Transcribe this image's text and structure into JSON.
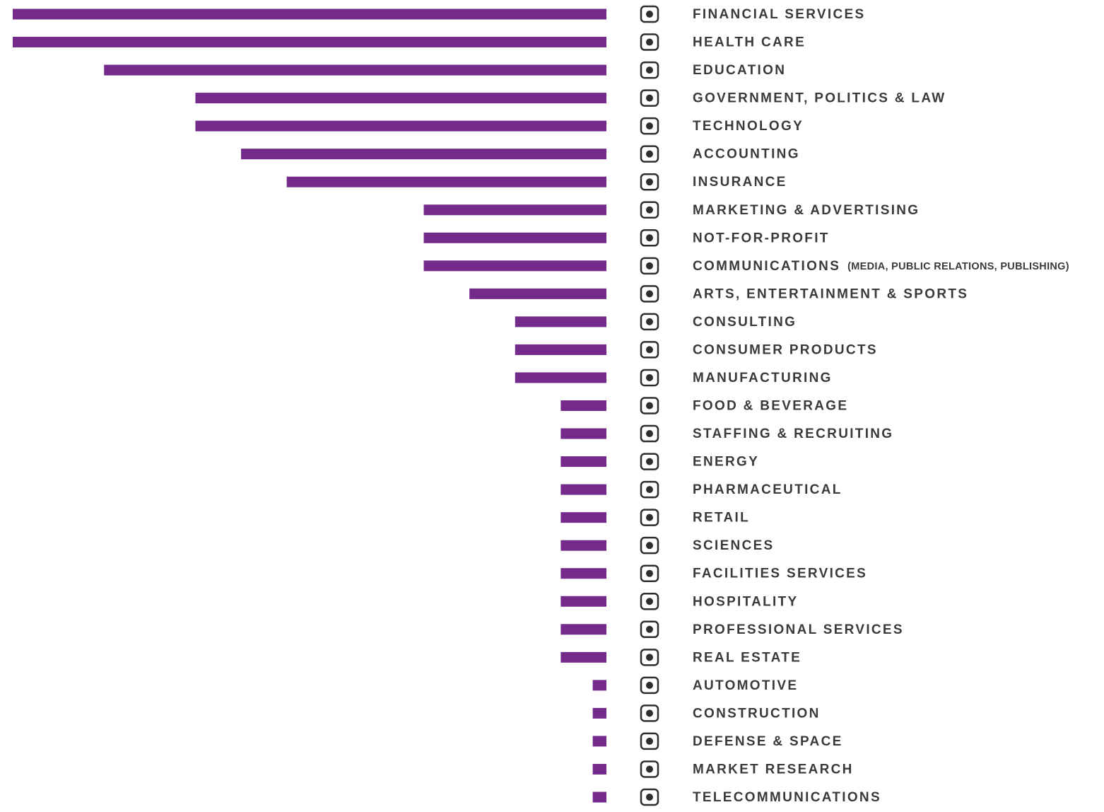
{
  "chart_data": {
    "type": "bar",
    "orientation": "horizontal",
    "color": "#732a8a",
    "categories": [
      "FINANCIAL SERVICES",
      "HEALTH CARE",
      "EDUCATION",
      "GOVERNMENT, POLITICS & LAW",
      "TECHNOLOGY",
      "ACCOUNTING",
      "INSURANCE",
      "MARKETING & ADVERTISING",
      "NOT-FOR-PROFIT",
      "COMMUNICATIONS",
      "ARTS, ENTERTAINMENT & SPORTS",
      "CONSULTING",
      "CONSUMER PRODUCTS",
      "MANUFACTURING",
      "FOOD & BEVERAGE",
      "STAFFING & RECRUITING",
      "ENERGY",
      "PHARMACEUTICAL",
      "RETAIL",
      "SCIENCES",
      "FACILITIES SERVICES",
      "HOSPITALITY",
      "PROFESSIONAL SERVICES",
      "REAL ESTATE",
      "AUTOMOTIVE",
      "CONSTRUCTION",
      "DEFENSE & SPACE",
      "MARKET RESEARCH",
      "TELECOMMUNICATIONS"
    ],
    "category_notes": [
      null,
      null,
      null,
      null,
      null,
      null,
      null,
      null,
      null,
      "(MEDIA, PUBLIC RELATIONS, PUBLISHING)",
      null,
      null,
      null,
      null,
      null,
      null,
      null,
      null,
      null,
      null,
      null,
      null,
      null,
      null,
      null,
      null,
      null,
      null,
      null
    ],
    "values": [
      13,
      13,
      11,
      9,
      9,
      8,
      7,
      4,
      4,
      4,
      3,
      2,
      2,
      2,
      1,
      1,
      1,
      1,
      1,
      1,
      1,
      1,
      1,
      1,
      0.3,
      0.3,
      0.3,
      0.3,
      0.3
    ]
  }
}
